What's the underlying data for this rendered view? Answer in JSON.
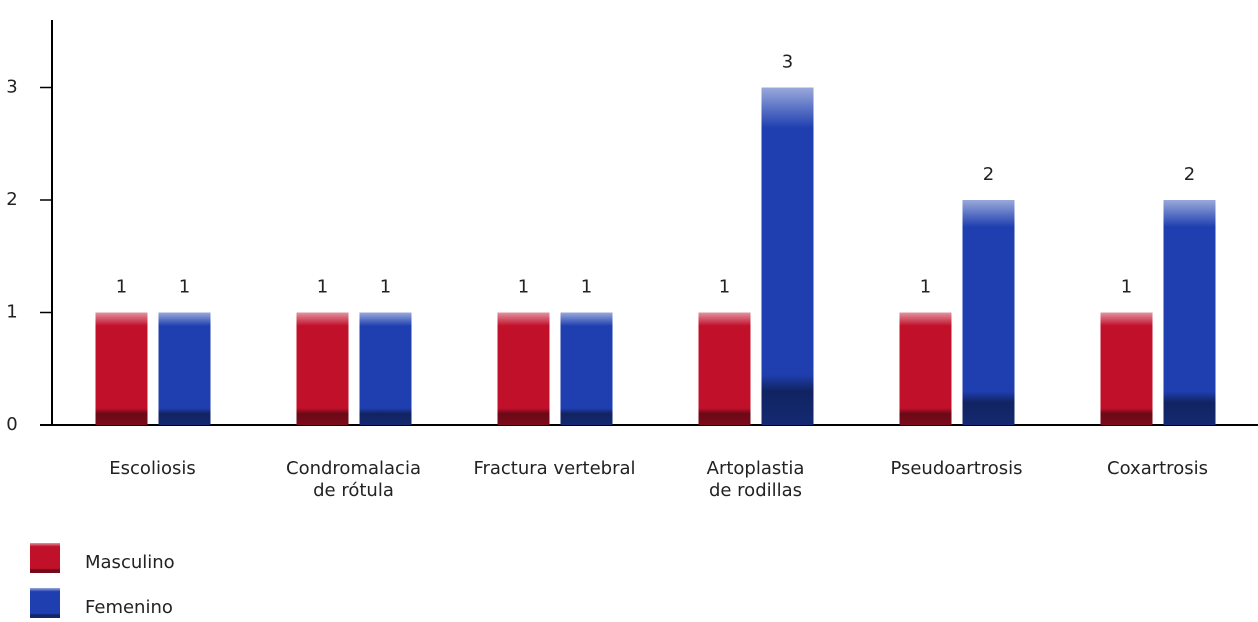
{
  "chart_data": {
    "type": "bar",
    "categories": [
      "Escoliosis",
      "Condromalacia de rótula",
      "Fractura vertebral",
      "Artoplastia de rodillas",
      "Pseudoartrosis",
      "Coxartrosis"
    ],
    "series": [
      {
        "name": "Masculino",
        "color": "#c0102a",
        "values": [
          1,
          1,
          1,
          1,
          1,
          1
        ]
      },
      {
        "name": "Femenino",
        "color": "#1f3fb0",
        "values": [
          1,
          1,
          1,
          3,
          2,
          2
        ]
      }
    ],
    "ylim": [
      0,
      3.6
    ],
    "yticks": [
      0,
      1,
      2,
      3
    ],
    "legend": "bottom-left"
  }
}
